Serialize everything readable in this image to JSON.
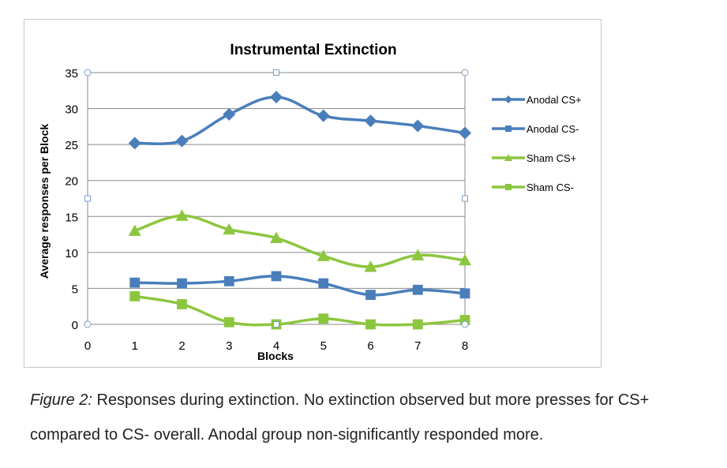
{
  "chart_data": {
    "type": "line",
    "title": "Instrumental Extinction",
    "xlabel": "Blocks",
    "ylabel": "Average responses per Block",
    "x_ticks": [
      0,
      1,
      2,
      3,
      4,
      5,
      6,
      7,
      8
    ],
    "y_ticks": [
      0,
      5,
      10,
      15,
      20,
      25,
      30,
      35
    ],
    "xlim": [
      0,
      8
    ],
    "ylim": [
      0,
      35
    ],
    "grid": true,
    "legend_position": "right",
    "x": [
      1,
      2,
      3,
      4,
      5,
      6,
      7,
      8
    ],
    "series": [
      {
        "name": "Anodal CS+",
        "marker": "diamond",
        "color": "#4a7ebb",
        "values": [
          25.2,
          25.5,
          29.2,
          31.6,
          29.0,
          28.3,
          27.6,
          26.6
        ]
      },
      {
        "name": "Anodal CS-",
        "marker": "square",
        "color": "#4a7ebb",
        "values": [
          5.8,
          5.7,
          6.0,
          6.7,
          5.7,
          4.1,
          4.8,
          4.3
        ]
      },
      {
        "name": "Sham CS+",
        "marker": "triangle",
        "color": "#8cc63f",
        "values": [
          13.0,
          15.1,
          13.2,
          12.0,
          9.5,
          8.0,
          9.6,
          8.9
        ]
      },
      {
        "name": "Sham CS-",
        "marker": "square",
        "color": "#8cc63f",
        "values": [
          3.9,
          2.8,
          0.3,
          0.0,
          0.8,
          0.0,
          0.0,
          0.6
        ]
      }
    ]
  },
  "caption": {
    "label": "Figure 2:",
    "line1": " Responses during extinction. No extinction observed but more presses for CS+",
    "line2": "compared to CS- overall. Anodal group non-significantly responded more."
  }
}
